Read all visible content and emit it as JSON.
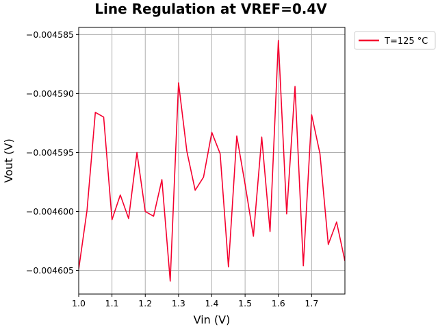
{
  "chart_data": {
    "type": "line",
    "title": "Line Regulation at VREF=0.4V",
    "xlabel": "Vin (V)",
    "ylabel": "Vout (V)",
    "xlim": [
      1.0,
      1.8
    ],
    "ylim": [
      -0.004607,
      -0.0045844
    ],
    "xticks": [
      1.0,
      1.1,
      1.2,
      1.3,
      1.4,
      1.5,
      1.6,
      1.7
    ],
    "xtick_labels": [
      "1.0",
      "1.1",
      "1.2",
      "1.3",
      "1.4",
      "1.5",
      "1.6",
      "1.7"
    ],
    "yticks": [
      -0.004585,
      -0.00459,
      -0.004595,
      -0.0046,
      -0.004605
    ],
    "ytick_labels": [
      "−0.004585",
      "−0.004590",
      "−0.004595",
      "−0.004600",
      "−0.004605"
    ],
    "grid": true,
    "legend_position": "outside-top-right",
    "series": [
      {
        "name": "T=125 °C",
        "color": "#f5002f",
        "x": [
          1.0,
          1.025,
          1.05,
          1.075,
          1.1,
          1.125,
          1.15,
          1.175,
          1.2,
          1.225,
          1.25,
          1.275,
          1.3,
          1.325,
          1.35,
          1.375,
          1.4,
          1.425,
          1.45,
          1.475,
          1.5,
          1.525,
          1.55,
          1.575,
          1.6,
          1.625,
          1.65,
          1.675,
          1.7,
          1.725,
          1.75,
          1.775,
          1.8
        ],
        "y": [
          -0.0046049,
          -0.0045999,
          -0.0045916,
          -0.004592,
          -0.0046007,
          -0.0045986,
          -0.0046006,
          -0.004595,
          -0.0046,
          -0.0046004,
          -0.0045973,
          -0.0046059,
          -0.0045891,
          -0.0045949,
          -0.0045982,
          -0.0045971,
          -0.0045933,
          -0.0045951,
          -0.0046047,
          -0.0045936,
          -0.0045977,
          -0.0046021,
          -0.0045937,
          -0.0046017,
          -0.0045855,
          -0.0046002,
          -0.0045894,
          -0.0046046,
          -0.0045918,
          -0.0045951,
          -0.0046028,
          -0.0046009,
          -0.0046042
        ]
      }
    ]
  }
}
